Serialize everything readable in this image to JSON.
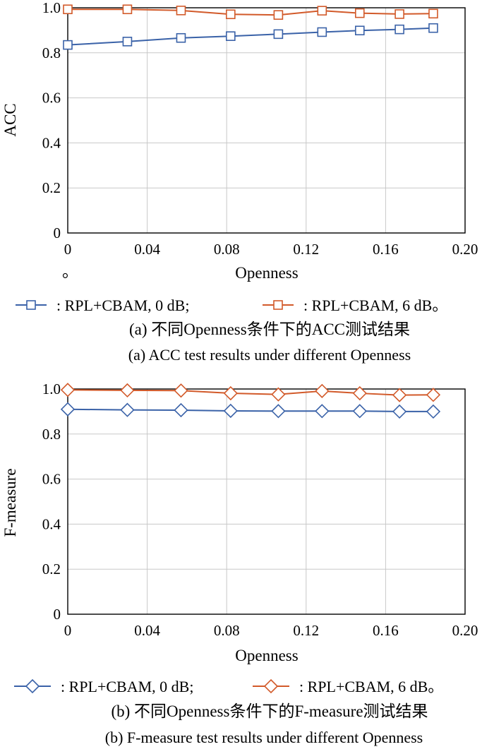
{
  "charts": {
    "a": {
      "ylabel": "ACC",
      "xlabel": "Openness",
      "stray_mark": "。",
      "legend": [
        ": RPL+CBAM, 0 dB;",
        ": RPL+CBAM, 6 dB。"
      ],
      "caption_zh": "(a) 不同Openness条件下的ACC测试结果",
      "caption_en": "(a) ACC test results under different Openness"
    },
    "b": {
      "ylabel": "F-measure",
      "xlabel": "Openness",
      "legend": [
        ": RPL+CBAM, 0 dB;",
        ": RPL+CBAM, 6 dB。"
      ],
      "caption_zh": "(b) 不同Openness条件下的F-measure测试结果",
      "caption_en": "(b) F-measure test results under different Openness"
    }
  },
  "chart_data": [
    {
      "type": "line",
      "marker": "square",
      "xlabel": "Openness",
      "ylabel": "ACC",
      "xlim": [
        0,
        0.2
      ],
      "ylim": [
        0,
        1.0
      ],
      "xticks": [
        "0",
        "0.04",
        "0.08",
        "0.12",
        "0.16",
        "0.20"
      ],
      "yticks": [
        "0",
        "0.2",
        "0.4",
        "0.6",
        "0.8",
        "1.0"
      ],
      "grid": true,
      "legend_position": "bottom",
      "x": [
        0,
        0.03,
        0.057,
        0.082,
        0.106,
        0.128,
        0.147,
        0.167,
        0.184
      ],
      "series": [
        {
          "name": "RPL+CBAM, 0 dB",
          "color": "#3a62a8",
          "values": [
            0.835,
            0.85,
            0.866,
            0.874,
            0.883,
            0.892,
            0.899,
            0.904,
            0.91
          ]
        },
        {
          "name": "RPL+CBAM, 6 dB",
          "color": "#d25a2a",
          "values": [
            0.993,
            0.993,
            0.988,
            0.971,
            0.968,
            0.987,
            0.976,
            0.972,
            0.974
          ]
        }
      ]
    },
    {
      "type": "line",
      "marker": "diamond",
      "xlabel": "Openness",
      "ylabel": "F-measure",
      "xlim": [
        0,
        0.2
      ],
      "ylim": [
        0,
        1.0
      ],
      "xticks": [
        "0",
        "0.04",
        "0.08",
        "0.12",
        "0.16",
        "0.20"
      ],
      "yticks": [
        "0",
        "0.2",
        "0.4",
        "0.6",
        "0.8",
        "1.0"
      ],
      "grid": true,
      "legend_position": "bottom",
      "x": [
        0,
        0.03,
        0.057,
        0.082,
        0.106,
        0.128,
        0.147,
        0.167,
        0.184
      ],
      "series": [
        {
          "name": "RPL+CBAM, 0 dB",
          "color": "#3a62a8",
          "values": [
            0.91,
            0.907,
            0.906,
            0.903,
            0.902,
            0.902,
            0.902,
            0.9,
            0.9
          ]
        },
        {
          "name": "RPL+CBAM, 6 dB",
          "color": "#d25a2a",
          "values": [
            0.996,
            0.994,
            0.993,
            0.981,
            0.976,
            0.991,
            0.981,
            0.973,
            0.974
          ]
        }
      ]
    }
  ]
}
